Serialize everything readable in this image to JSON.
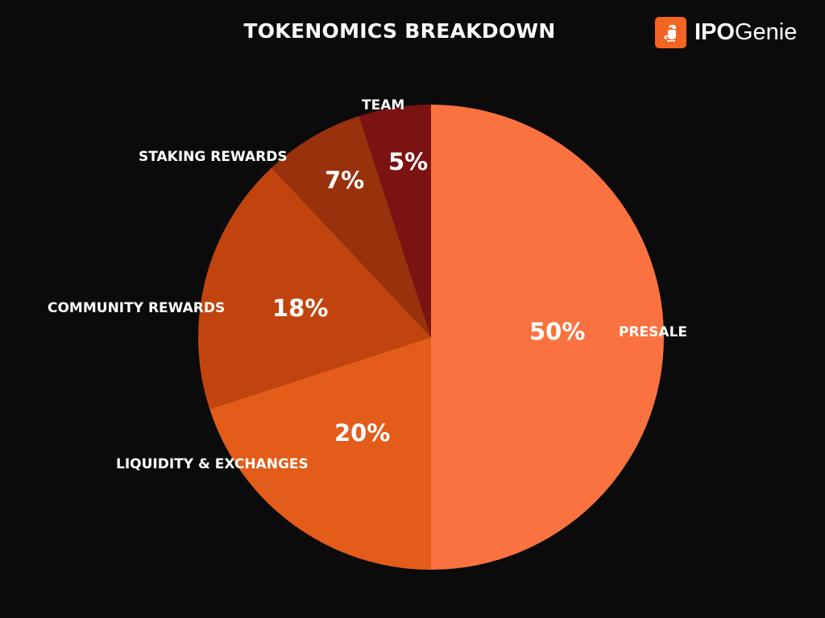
{
  "header": {
    "title": "TOKENOMICS BREAKDOWN",
    "logo": {
      "bold": "IPO",
      "regular": "Genie",
      "icon": "genie-lamp-icon",
      "color": "#f26522"
    }
  },
  "chart_data": {
    "type": "pie",
    "title": "TOKENOMICS BREAKDOWN",
    "categories": [
      "PRESALE",
      "LIQUIDITY & EXCHANGES",
      "COMMUNITY REWARDS",
      "STAKING REWARDS",
      "TEAM"
    ],
    "values": [
      50,
      20,
      18,
      7,
      5
    ],
    "labels": [
      "50%",
      "20%",
      "18%",
      "7%",
      "5%"
    ],
    "colors": [
      "#fa723f",
      "#e35c1a",
      "#c1440f",
      "#99310c",
      "#7b1313"
    ],
    "start_angle": "12 o'clock, clockwise",
    "legend": "none (labels placed on/near slices)"
  },
  "slices": [
    {
      "name": "PRESALE",
      "pct": "50%"
    },
    {
      "name": "LIQUIDITY & EXCHANGES",
      "pct": "20%"
    },
    {
      "name": "COMMUNITY REWARDS",
      "pct": "18%"
    },
    {
      "name": "STAKING REWARDS",
      "pct": "7%"
    },
    {
      "name": "TEAM",
      "pct": "5%"
    }
  ]
}
